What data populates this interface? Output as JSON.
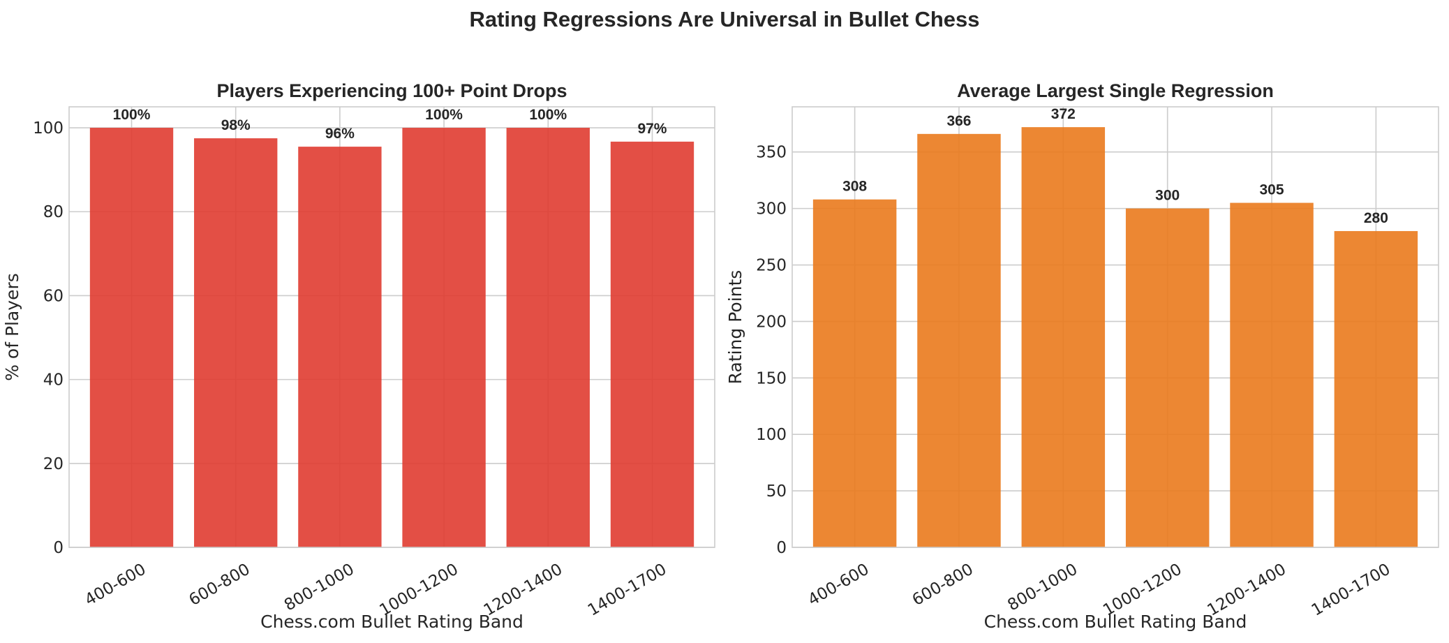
{
  "suptitle": "Rating Regressions Are Universal in Bullet Chess",
  "chart_data": [
    {
      "type": "bar",
      "title": "Players Experiencing 100+ Point Drops",
      "xlabel": "Chess.com Bullet Rating Band",
      "ylabel": "% of Players",
      "categories": [
        "400-600",
        "600-800",
        "800-1000",
        "1000-1200",
        "1200-1400",
        "1400-1700"
      ],
      "values": [
        100,
        97.5,
        95.5,
        100,
        100,
        96.7
      ],
      "value_labels": [
        "100%",
        "98%",
        "96%",
        "100%",
        "100%",
        "97%"
      ],
      "ylim": [
        0,
        105
      ],
      "yticks": [
        0,
        20,
        40,
        60,
        80,
        100
      ],
      "bar_color": "#e03c31",
      "grid": true
    },
    {
      "type": "bar",
      "title": "Average Largest Single Regression",
      "xlabel": "Chess.com Bullet Rating Band",
      "ylabel": "Rating Points",
      "categories": [
        "400-600",
        "600-800",
        "800-1000",
        "1000-1200",
        "1200-1400",
        "1400-1700"
      ],
      "values": [
        308,
        366,
        372,
        300,
        305,
        280
      ],
      "value_labels": [
        "308",
        "366",
        "372",
        "300",
        "305",
        "280"
      ],
      "ylim": [
        0,
        390
      ],
      "yticks": [
        0,
        50,
        100,
        150,
        200,
        250,
        300,
        350
      ],
      "bar_color": "#ea7a1d",
      "grid": true
    }
  ]
}
